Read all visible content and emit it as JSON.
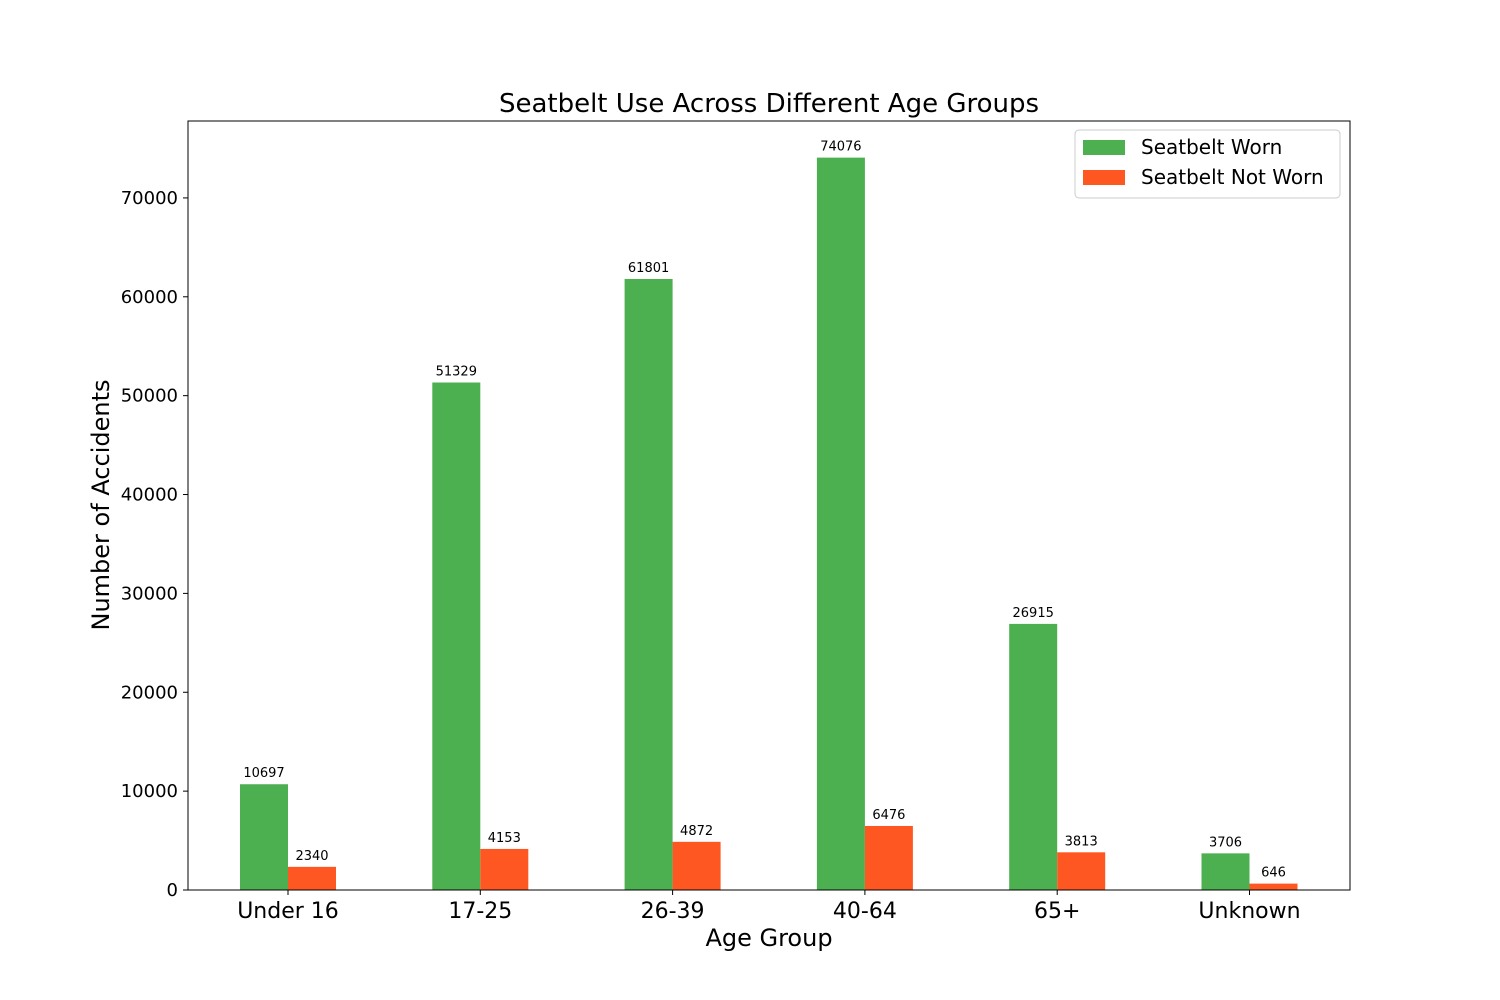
{
  "chart_data": {
    "type": "bar",
    "title": "Seatbelt Use Across Different Age Groups",
    "xlabel": "Age Group",
    "ylabel": "Number of Accidents",
    "categories": [
      "Under 16",
      "17-25",
      "26-39",
      "40-64",
      "65+",
      "Unknown"
    ],
    "series": [
      {
        "name": "Seatbelt Worn",
        "color": "#4caf50",
        "values": [
          10697,
          51329,
          61801,
          74076,
          26915,
          3706
        ]
      },
      {
        "name": "Seatbelt Not Worn",
        "color": "#ff5722",
        "values": [
          2340,
          4153,
          4872,
          6476,
          3813,
          646
        ]
      }
    ],
    "ylim": [
      0,
      77780
    ],
    "yticks": [
      0,
      10000,
      20000,
      30000,
      40000,
      50000,
      60000,
      70000
    ],
    "grid": false,
    "legend_position": "top-right"
  }
}
